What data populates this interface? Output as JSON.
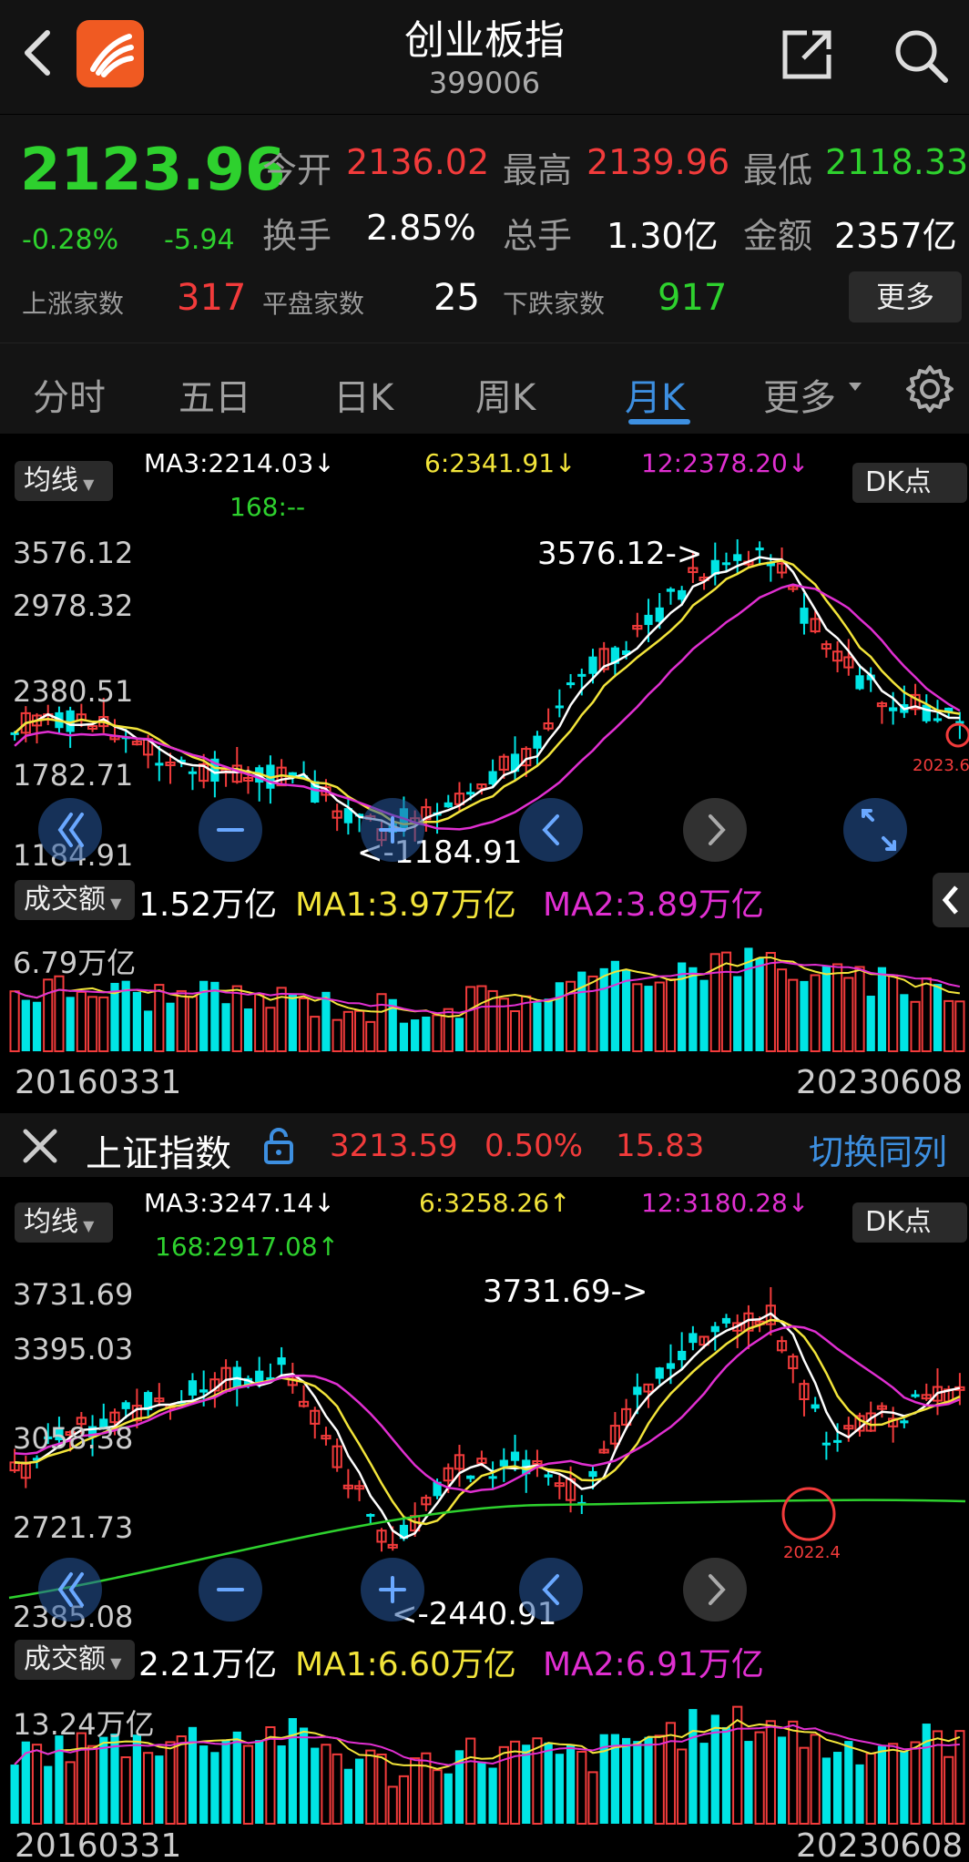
{
  "header": {
    "title": "创业板指",
    "code": "399006"
  },
  "quote": {
    "price": "2123.96",
    "change_pct": "-0.28%",
    "change": "-5.94",
    "open_label": "今开",
    "open": "2136.02",
    "high_label": "最高",
    "high": "2139.96",
    "low_label": "最低",
    "low": "2118.33",
    "turnover_label": "换手",
    "turnover": "2.85%",
    "volume_label": "总手",
    "volume": "1.30亿",
    "amount_label": "金额",
    "amount": "2357亿",
    "up_label": "上涨家数",
    "up": "317",
    "flat_label": "平盘家数",
    "flat": "25",
    "down_label": "下跌家数",
    "down": "917",
    "more_label": "更多"
  },
  "tabs": [
    "分时",
    "五日",
    "日K",
    "周K",
    "月K",
    "更多"
  ],
  "active_tab": "月K",
  "chart1": {
    "ma_select": "均线",
    "ma3": "MA3:2214.03↓",
    "ma6": "6:2341.91↓",
    "ma12": "12:2378.20↓",
    "ma168": "168:--",
    "dk_label": "DK点",
    "ticks": [
      "3576.12",
      "2978.32",
      "2380.51",
      "1782.71",
      "1184.91"
    ],
    "high_annot": "3576.12->",
    "low_annot": "<-1184.91",
    "circle_label": "2023.6",
    "vol_select": "成交额",
    "vol_value": "1.52万亿",
    "vol_ma1": "MA1:3.97万亿",
    "vol_ma2": "MA2:3.89万亿",
    "vol_max": "6.79万亿",
    "date_start": "20160331",
    "date_end": "20230608"
  },
  "compare": {
    "name": "上证指数",
    "price": "3213.59",
    "pct": "0.50%",
    "change": "15.83",
    "switch_label": "切换同列"
  },
  "chart2": {
    "ma_select": "均线",
    "ma3": "MA3:3247.14↓",
    "ma6": "6:3258.26↑",
    "ma12": "12:3180.28↓",
    "ma168": "168:2917.08↑",
    "dk_label": "DK点",
    "ticks": [
      "3731.69",
      "3395.03",
      "3058.38",
      "2721.73",
      "2385.08"
    ],
    "high_annot": "3731.69->",
    "low_annot": "<-2440.91",
    "circle_label": "2022.4",
    "vol_select": "成交额",
    "vol_value": "2.21万亿",
    "vol_ma1": "MA1:6.60万亿",
    "vol_ma2": "MA2:6.91万亿",
    "vol_max": "13.24万亿",
    "date_start": "20160331",
    "date_end": "20230608"
  },
  "colors": {
    "up": "#f23b3b",
    "down": "#00e5e5",
    "ma3": "#ffffff",
    "ma6": "#f2e43a",
    "ma12": "#e02fd1",
    "ma168": "#2ed12e",
    "accent": "#3d8fe0"
  }
}
